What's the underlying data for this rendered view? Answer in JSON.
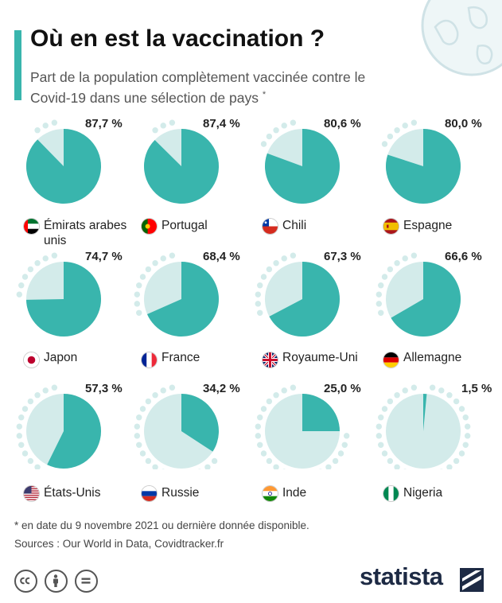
{
  "header": {
    "title": "Où en est la vaccination ?",
    "subtitle": "Part de la population complètement vaccinée contre le Covid-19 dans une sélection de pays",
    "subtitle_mark": "*"
  },
  "chart_data": {
    "type": "pie",
    "title": "Où en est la vaccination ?",
    "subtitle": "Part de la population complètement vaccinée contre le Covid-19 dans une sélection de pays",
    "unit": "%",
    "items": [
      {
        "country": "Émirats arabes unis",
        "value": 87.7,
        "label": "87,7 %",
        "flag": "ae"
      },
      {
        "country": "Portugal",
        "value": 87.4,
        "label": "87,4 %",
        "flag": "pt"
      },
      {
        "country": "Chili",
        "value": 80.6,
        "label": "80,6 %",
        "flag": "cl"
      },
      {
        "country": "Espagne",
        "value": 80.0,
        "label": "80,0 %",
        "flag": "es"
      },
      {
        "country": "Japon",
        "value": 74.7,
        "label": "74,7 %",
        "flag": "jp"
      },
      {
        "country": "France",
        "value": 68.4,
        "label": "68,4 %",
        "flag": "fr"
      },
      {
        "country": "Royaume-Uni",
        "value": 67.3,
        "label": "67,3 %",
        "flag": "gb"
      },
      {
        "country": "Allemagne",
        "value": 66.6,
        "label": "66,6 %",
        "flag": "de"
      },
      {
        "country": "États-Unis",
        "value": 57.3,
        "label": "57,3 %",
        "flag": "us"
      },
      {
        "country": "Russie",
        "value": 34.2,
        "label": "34,2 %",
        "flag": "ru"
      },
      {
        "country": "Inde",
        "value": 25.0,
        "label": "25,0 %",
        "flag": "in"
      },
      {
        "country": "Nigeria",
        "value": 1.5,
        "label": "1,5 %",
        "flag": "ng"
      }
    ],
    "colors": {
      "vaccinated": "#39b5ad",
      "remaining": "#d3ebea",
      "dots": "#d3ebea"
    }
  },
  "footer": {
    "footnote": "* en date du 9 novembre 2021 ou dernière donnée disponible.",
    "sources": "Sources : Our World in Data, Covidtracker.fr",
    "logo": "statista",
    "license_icons": [
      "cc-icon",
      "by-person-icon",
      "nd-equal-icon"
    ]
  }
}
